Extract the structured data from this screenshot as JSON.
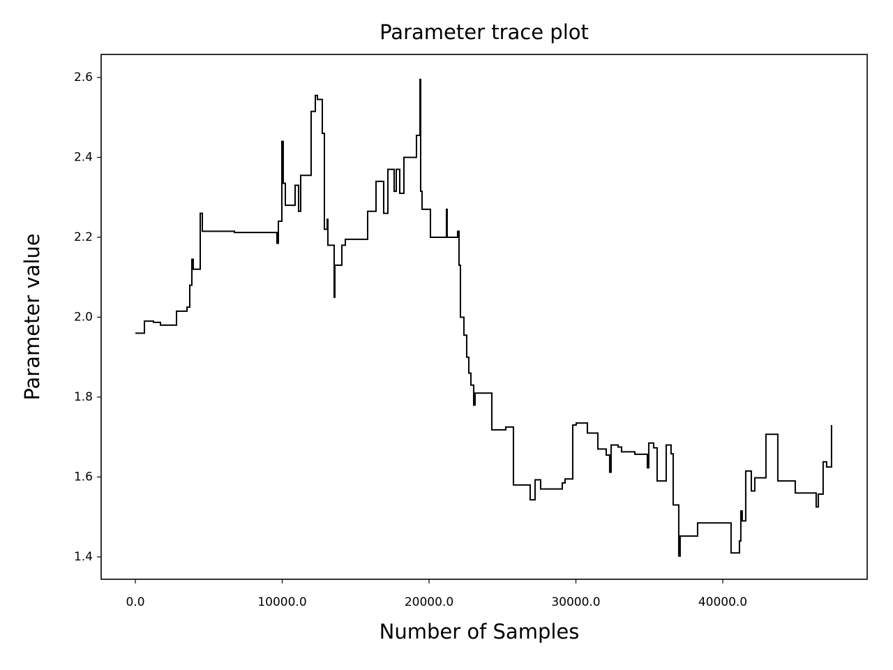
{
  "chart_data": {
    "type": "line",
    "title": "Parameter trace plot",
    "x_label": "Number of Samples",
    "y_label": "Parameter value",
    "xlim": [
      -2328,
      49834
    ],
    "ylim": [
      1.344,
      2.6576
    ],
    "xticks": [
      {
        "value": 0,
        "label": "0.0"
      },
      {
        "value": 10000,
        "label": "10000.0"
      },
      {
        "value": 20000,
        "label": "20000.0"
      },
      {
        "value": 30000,
        "label": "30000.0"
      },
      {
        "value": 40000,
        "label": "40000.0"
      }
    ],
    "yticks": [
      1.4,
      1.6,
      1.8,
      {
        "value": 2,
        "label": "2.0"
      },
      2.2,
      2.4,
      2.6
    ],
    "grid": false,
    "series": [
      {
        "color": "#000000",
        "x": [
          0,
          618,
          618,
          1235,
          1235,
          1710,
          1710,
          2803,
          2803,
          3515,
          3515,
          3705,
          3705,
          3848,
          3848,
          3943,
          3943,
          4418,
          4418,
          4560,
          4560,
          6745,
          6745,
          9643,
          9643,
          9738,
          9738,
          9975,
          9975,
          10070,
          10070,
          10213,
          10213,
          10878,
          10878,
          11115,
          11115,
          11258,
          11258,
          11970,
          11970,
          12255,
          12255,
          12398,
          12398,
          12730,
          12730,
          12873,
          12873,
          13063,
          13063,
          13110,
          13110,
          13538,
          13538,
          13585,
          13585,
          14060,
          14060,
          14298,
          14298,
          15818,
          15818,
          16388,
          16388,
          16910,
          16910,
          17195,
          17195,
          17623,
          17623,
          17765,
          17765,
          18003,
          18003,
          18288,
          18288,
          19143,
          19143,
          19380,
          19380,
          19428,
          19428,
          19523,
          19523,
          20093,
          20093,
          21185,
          21185,
          21233,
          21233,
          21945,
          21945,
          22040,
          22040,
          22135,
          22135,
          22373,
          22373,
          22563,
          22563,
          22705,
          22705,
          22848,
          22848,
          23038,
          23038,
          23133,
          23133,
          24273,
          24273,
          25223,
          25223,
          25745,
          25745,
          26885,
          26885,
          27218,
          27218,
          27598,
          27598,
          29070,
          29070,
          29260,
          29260,
          29783,
          29783,
          30020,
          30020,
          30780,
          30780,
          31493,
          31493,
          32063,
          32063,
          32300,
          32300,
          32395,
          32395,
          32870,
          32870,
          33108,
          33108,
          34010,
          34010,
          34865,
          34865,
          34960,
          34960,
          35293,
          35293,
          35530,
          35530,
          36148,
          36148,
          36480,
          36480,
          36623,
          36623,
          37003,
          37003,
          37098,
          37098,
          38285,
          38285,
          40565,
          40565,
          41135,
          41135,
          41230,
          41230,
          41325,
          41325,
          41563,
          41563,
          41943,
          41943,
          42180,
          42180,
          42940,
          42940,
          43748,
          43748,
          44935,
          44935,
          46360,
          46360,
          46503,
          46503,
          46835,
          46835,
          47073,
          47073,
          47405,
          47405
        ],
        "values": [
          1.96,
          1.96,
          1.99,
          1.99,
          1.987,
          1.987,
          1.98,
          1.98,
          2.015,
          2.015,
          2.025,
          2.025,
          2.08,
          2.08,
          2.145,
          2.145,
          2.12,
          2.12,
          2.26,
          2.26,
          2.215,
          2.215,
          2.212,
          2.212,
          2.185,
          2.185,
          2.24,
          2.24,
          2.44,
          2.44,
          2.335,
          2.335,
          2.28,
          2.28,
          2.33,
          2.33,
          2.265,
          2.265,
          2.355,
          2.355,
          2.515,
          2.515,
          2.555,
          2.555,
          2.545,
          2.545,
          2.46,
          2.46,
          2.22,
          2.22,
          2.245,
          2.245,
          2.18,
          2.18,
          2.05,
          2.05,
          2.13,
          2.13,
          2.18,
          2.18,
          2.195,
          2.195,
          2.265,
          2.265,
          2.34,
          2.34,
          2.26,
          2.26,
          2.37,
          2.37,
          2.315,
          2.315,
          2.37,
          2.37,
          2.31,
          2.31,
          2.4,
          2.4,
          2.455,
          2.455,
          2.595,
          2.595,
          2.315,
          2.315,
          2.27,
          2.27,
          2.2,
          2.2,
          2.27,
          2.27,
          2.2,
          2.2,
          2.215,
          2.215,
          2.13,
          2.13,
          2.0,
          2.0,
          1.955,
          1.955,
          1.9,
          1.9,
          1.86,
          1.86,
          1.83,
          1.83,
          1.78,
          1.78,
          1.81,
          1.81,
          1.718,
          1.718,
          1.725,
          1.725,
          1.58,
          1.58,
          1.543,
          1.543,
          1.593,
          1.593,
          1.57,
          1.57,
          1.585,
          1.585,
          1.595,
          1.595,
          1.73,
          1.73,
          1.735,
          1.735,
          1.71,
          1.71,
          1.67,
          1.67,
          1.655,
          1.655,
          1.612,
          1.612,
          1.68,
          1.68,
          1.675,
          1.675,
          1.663,
          1.663,
          1.657,
          1.657,
          1.623,
          1.623,
          1.685,
          1.685,
          1.673,
          1.673,
          1.59,
          1.59,
          1.68,
          1.68,
          1.658,
          1.658,
          1.53,
          1.53,
          1.402,
          1.402,
          1.452,
          1.452,
          1.485,
          1.485,
          1.41,
          1.41,
          1.44,
          1.44,
          1.515,
          1.515,
          1.49,
          1.49,
          1.615,
          1.615,
          1.565,
          1.565,
          1.598,
          1.598,
          1.707,
          1.707,
          1.59,
          1.59,
          1.56,
          1.56,
          1.525,
          1.525,
          1.557,
          1.557,
          1.638,
          1.638,
          1.625,
          1.625,
          1.73
        ]
      }
    ]
  }
}
